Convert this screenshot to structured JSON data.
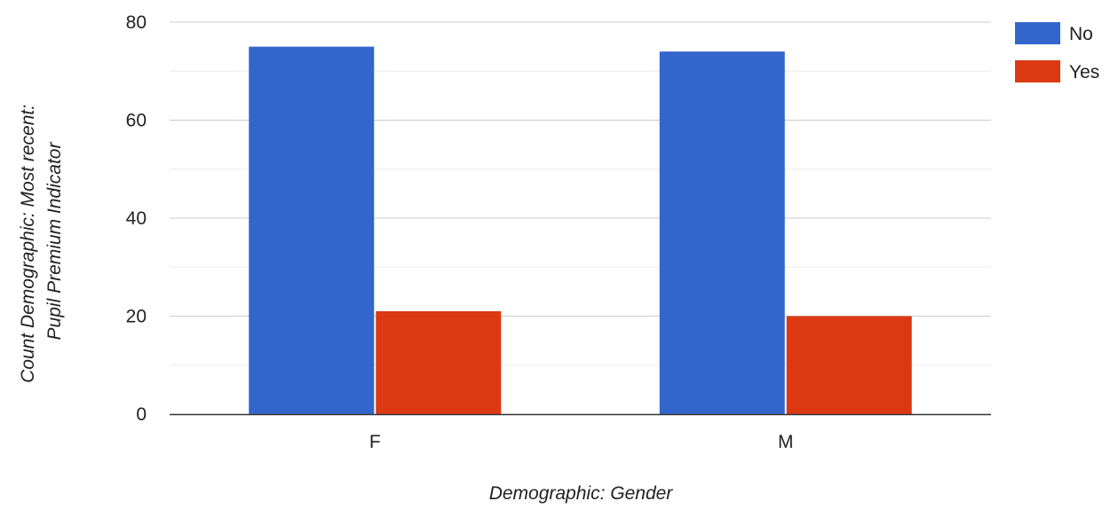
{
  "chart_data": {
    "type": "bar",
    "categories": [
      "F",
      "M"
    ],
    "series": [
      {
        "name": "No",
        "values": [
          75,
          74
        ],
        "color": "#3366cc"
      },
      {
        "name": "Yes",
        "values": [
          21,
          20
        ],
        "color": "#dc3912"
      }
    ],
    "xlabel": "Demographic: Gender",
    "ylabel_lines": [
      "Count Demographic: Most recent:",
      "Pupil Premium Indicator"
    ],
    "ylim": [
      0,
      80
    ],
    "yticks": [
      "0",
      "20",
      "40",
      "60",
      "80"
    ],
    "grid": true,
    "legend_position": "right"
  }
}
